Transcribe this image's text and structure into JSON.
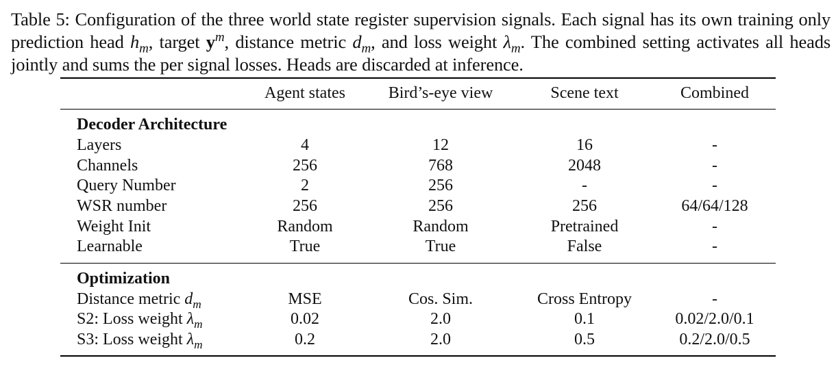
{
  "caption": {
    "label": "Table 5:",
    "seg1": " Configuration of the three world state register supervision signals. Each signal has its own training only prediction head ",
    "h": "h",
    "m1": "m",
    "seg2": ", target ",
    "y": "y",
    "m2": "m",
    "seg3": ", distance metric ",
    "d": "d",
    "m3": "m",
    "seg4": ", and loss weight ",
    "lambda": "λ",
    "m4": "m",
    "seg5": ". The combined setting activates all heads jointly and sums the per signal losses. Heads are discarded at inference."
  },
  "table": {
    "headers": [
      "Agent states",
      "Bird’s-eye view",
      "Scene text",
      "Combined"
    ],
    "sections": [
      {
        "title": "Decoder Architecture",
        "rows": [
          {
            "label": "Layers",
            "values": [
              "4",
              "12",
              "16",
              "-"
            ]
          },
          {
            "label": "Channels",
            "values": [
              "256",
              "768",
              "2048",
              "-"
            ]
          },
          {
            "label": "Query Number",
            "values": [
              "2",
              "256",
              "-",
              "-"
            ]
          },
          {
            "label": "WSR number",
            "values": [
              "256",
              "256",
              "256",
              "64/64/128"
            ]
          },
          {
            "label": "Weight Init",
            "values": [
              "Random",
              "Random",
              "Pretrained",
              "-"
            ]
          },
          {
            "label": "Learnable",
            "values": [
              "True",
              "True",
              "False",
              "-"
            ]
          }
        ]
      },
      {
        "title": "Optimization",
        "rows": [
          {
            "label": "Distance metric ",
            "sym": "d",
            "sub": "m",
            "values": [
              "MSE",
              "Cos. Sim.",
              "Cross Entropy",
              "-"
            ]
          },
          {
            "label": "S2: Loss weight ",
            "sym": "λ",
            "sub": "m",
            "values": [
              "0.02",
              "2.0",
              "0.1",
              "0.02/2.0/0.1"
            ]
          },
          {
            "label": "S3: Loss weight ",
            "sym": "λ",
            "sub": "m",
            "values": [
              "0.2",
              "2.0",
              "0.5",
              "0.2/2.0/0.5"
            ]
          }
        ]
      }
    ]
  }
}
